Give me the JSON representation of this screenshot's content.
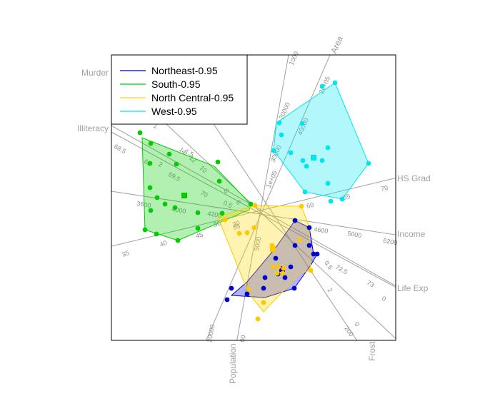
{
  "chart_data": {
    "type": "scatter",
    "subtype": "biplot with 0.95 bagplot hulls",
    "title": "",
    "xlabel": "",
    "ylabel": "",
    "grid": false,
    "legend_position": "top-left",
    "legend": [
      {
        "label": "Northeast-0.95",
        "color": "#00008b"
      },
      {
        "label": "South-0.95",
        "color": "#00cd00"
      },
      {
        "label": "North Central-0.95",
        "color": "#ffd700"
      },
      {
        "label": "West-0.95",
        "color": "#00e5ee"
      }
    ],
    "variables": [
      {
        "name": "Area",
        "ticks": [
          "1000",
          "2e+05",
          "1e+05",
          "40000",
          "30000",
          "20000"
        ]
      },
      {
        "name": "HS Grad",
        "ticks": [
          "70",
          "65",
          "60",
          "55",
          "45",
          "50"
        ]
      },
      {
        "name": "Income",
        "ticks": [
          "6200",
          "5000",
          "4600",
          "4200",
          "4000",
          "3600"
        ]
      },
      {
        "name": "Life Exp",
        "ticks": [
          "0",
          "73",
          "72.5",
          "70",
          "69.5",
          "69",
          "68.5"
        ]
      },
      {
        "name": "Frost",
        "ticks": [
          "0",
          "200",
          "2",
          "0.5"
        ]
      },
      {
        "name": "Population",
        "ticks": [
          "20000",
          "00",
          "5000"
        ]
      },
      {
        "name": "Illiteracy",
        "ticks": [
          "1",
          "2",
          "1.5",
          "0.5",
          "35",
          "30",
          "40"
        ]
      },
      {
        "name": "Murder",
        "ticks": [
          "14",
          "12",
          "10",
          "8",
          "6"
        ]
      }
    ],
    "series": [
      {
        "name": "Northeast-0.95",
        "color": "#0000cd",
        "hull_fill": "#0000ff",
        "center": [
          395,
          377
        ],
        "points": [
          [
            413,
            309
          ],
          [
            433,
            319
          ],
          [
            413,
            344
          ],
          [
            433,
            344
          ],
          [
            439,
            356
          ],
          [
            444,
            356
          ],
          [
            386,
            362
          ],
          [
            407,
            374
          ],
          [
            389,
            384
          ],
          [
            399,
            389
          ],
          [
            371,
            389
          ],
          [
            412,
            404
          ],
          [
            369,
            404
          ],
          [
            324,
            404
          ],
          [
            318,
            420
          ],
          [
            346,
            412
          ]
        ],
        "hull": [
          [
            413,
            309
          ],
          [
            433,
            319
          ],
          [
            439,
            356
          ],
          [
            444,
            356
          ],
          [
            436,
            370
          ],
          [
            412,
            404
          ],
          [
            371,
            417
          ],
          [
            324,
            414
          ],
          [
            346,
            395
          ],
          [
            386,
            347
          ]
        ]
      },
      {
        "name": "South-0.95",
        "color": "#00cd00",
        "hull_fill": "#00cd00",
        "center": [
          258,
          274
        ],
        "points": [
          [
            196,
            186
          ],
          [
            211,
            201
          ],
          [
            237,
            216
          ],
          [
            210,
            229
          ],
          [
            247,
            230
          ],
          [
            305,
            227
          ],
          [
            307,
            254
          ],
          [
            210,
            263
          ],
          [
            231,
            286
          ],
          [
            220,
            277
          ],
          [
            245,
            291
          ],
          [
            277,
            298
          ],
          [
            311,
            299
          ],
          [
            211,
            295
          ],
          [
            203,
            322
          ],
          [
            219,
            328
          ],
          [
            249,
            337
          ],
          [
            277,
            320
          ],
          [
            351,
            286
          ]
        ],
        "hull": [
          [
            199,
            193
          ],
          [
            300,
            233
          ],
          [
            351,
            286
          ],
          [
            349,
            294
          ],
          [
            249,
            337
          ],
          [
            203,
            322
          ]
        ]
      },
      {
        "name": "North Central-0.95",
        "color": "#ffc800",
        "hull_fill": "#ffd700",
        "center": [
          382,
          349
        ],
        "points": [
          [
            357,
            288
          ],
          [
            422,
            289
          ],
          [
            315,
            308
          ],
          [
            419,
            336
          ],
          [
            346,
            326
          ],
          [
            381,
            344
          ],
          [
            397,
            376
          ],
          [
            390,
            374
          ],
          [
            382,
            374
          ],
          [
            388,
            383
          ],
          [
            396,
            383
          ],
          [
            435,
            379
          ],
          [
            348,
            405
          ],
          [
            361,
            447
          ],
          [
            369,
            424
          ],
          [
            356,
            319
          ],
          [
            335,
            327
          ]
        ],
        "hull": [
          [
            357,
            288
          ],
          [
            422,
            289
          ],
          [
            433,
            318
          ],
          [
            435,
            379
          ],
          [
            420,
            383
          ],
          [
            369,
            437
          ],
          [
            348,
            411
          ],
          [
            305,
            304
          ]
        ]
      },
      {
        "name": "West-0.95",
        "color": "#00e5ee",
        "hull_fill": "#00e5ee",
        "center": [
          439,
          221
        ],
        "points": [
          [
            469,
            116
          ],
          [
            451,
            121
          ],
          [
            391,
            172
          ],
          [
            423,
            173
          ],
          [
            394,
            189
          ],
          [
            383,
            211
          ],
          [
            407,
            214
          ],
          [
            424,
            225
          ],
          [
            459,
            207
          ],
          [
            451,
            225
          ],
          [
            516,
            229
          ],
          [
            429,
            233
          ],
          [
            427,
            269
          ],
          [
            459,
            257
          ],
          [
            479,
            279
          ],
          [
            463,
            282
          ]
        ],
        "hull": [
          [
            469,
            116
          ],
          [
            516,
            229
          ],
          [
            479,
            279
          ],
          [
            427,
            269
          ],
          [
            383,
            211
          ],
          [
            387,
            172
          ]
        ]
      }
    ]
  }
}
